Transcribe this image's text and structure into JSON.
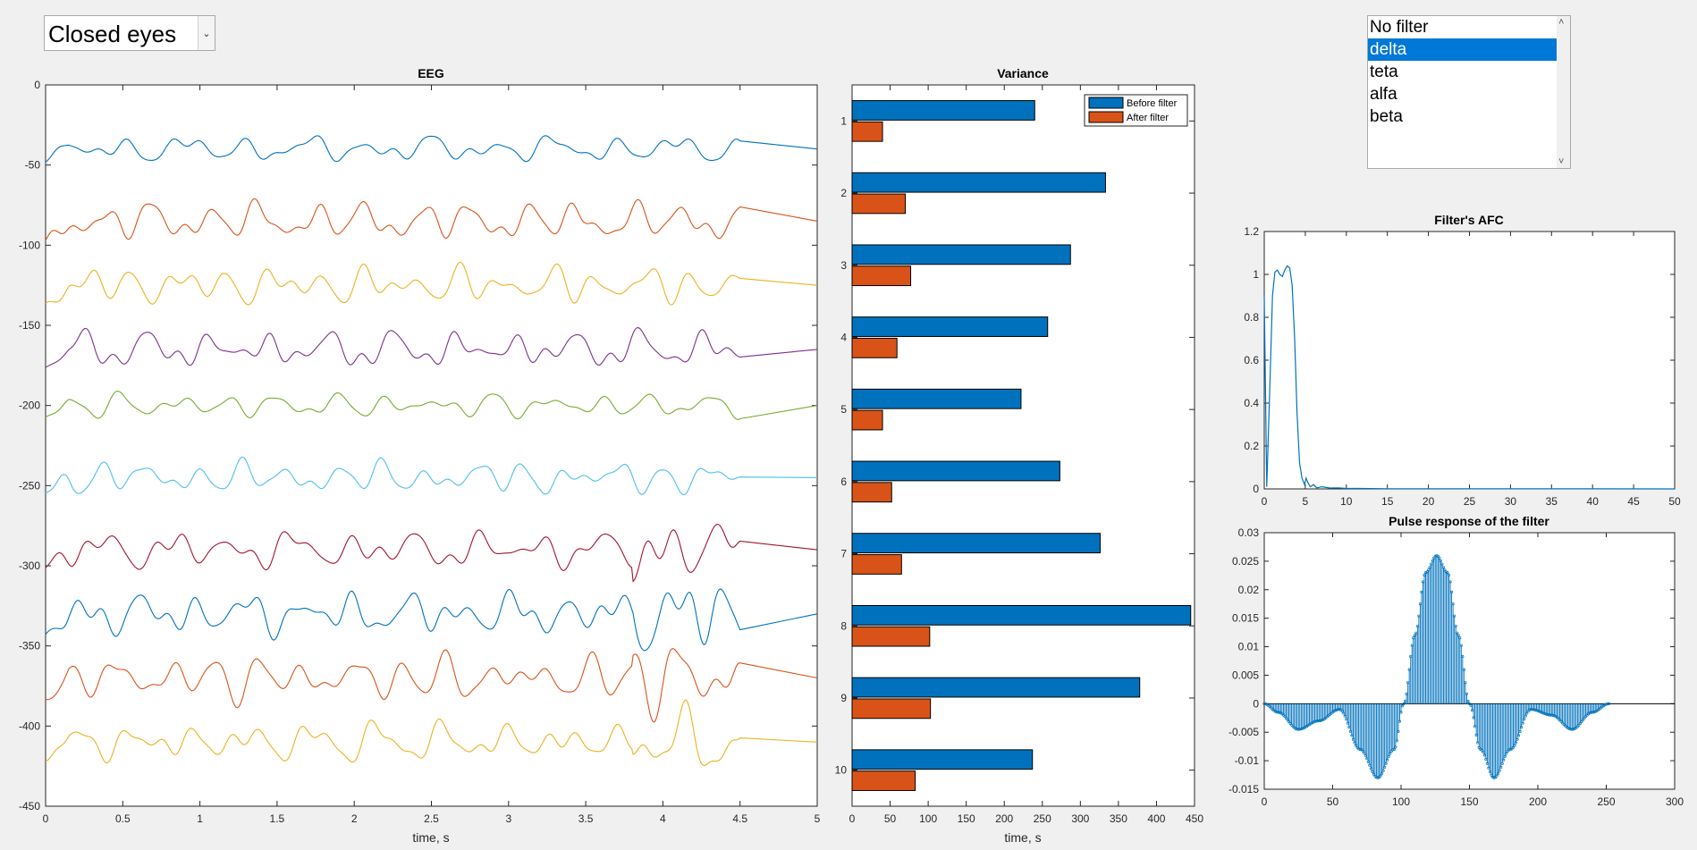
{
  "dropdown": {
    "value": "Closed eyes"
  },
  "listbox": {
    "items": [
      "No filter",
      "delta",
      "teta",
      "alfa",
      "beta"
    ],
    "selected_index": 1
  },
  "colors": {
    "series": [
      "#0072bd",
      "#d95319",
      "#edb120",
      "#7e2f8e",
      "#77ac30",
      "#4dbeee",
      "#a2142f"
    ],
    "before": "#0072bd",
    "after": "#d95319",
    "selection": "#0078d7"
  },
  "chart_data": [
    {
      "type": "line",
      "title": "EEG",
      "xlabel": "time, s",
      "ylabel": "",
      "xlim": [
        0,
        5
      ],
      "ylim": [
        -450,
        0
      ],
      "xticks": [
        "0",
        "0.5",
        "1",
        "1.5",
        "2",
        "2.5",
        "3",
        "3.5",
        "4",
        "4.5",
        "5"
      ],
      "yticks": [
        "0",
        "-50",
        "-100",
        "-150",
        "-200",
        "-250",
        "-300",
        "-350",
        "-400",
        "-450"
      ],
      "channel_offsets": [
        -40,
        -85,
        -125,
        -165,
        -200,
        -245,
        -290,
        -330,
        -370,
        -410
      ],
      "channel_amplitudes": [
        10,
        15,
        14,
        14,
        9,
        12,
        14,
        16,
        17,
        15
      ]
    },
    {
      "type": "bar",
      "orientation": "horizontal",
      "title": "Variance",
      "xlabel": "time, s",
      "xlim": [
        0,
        450
      ],
      "xticks": [
        "0",
        "50",
        "100",
        "150",
        "200",
        "250",
        "300",
        "350",
        "400",
        "450"
      ],
      "categories": [
        "1",
        "2",
        "3",
        "4",
        "5",
        "6",
        "7",
        "8",
        "9",
        "10"
      ],
      "series": [
        {
          "name": "Before filter",
          "values": [
            240,
            333,
            287,
            257,
            222,
            273,
            326,
            445,
            378,
            237
          ]
        },
        {
          "name": "After filter",
          "values": [
            40,
            70,
            77,
            59,
            40,
            52,
            65,
            102,
            103,
            83
          ]
        }
      ],
      "legend": "top-right"
    },
    {
      "type": "line",
      "title": "Filter's AFC",
      "xlabel": "",
      "xlim": [
        0,
        50
      ],
      "ylim": [
        0,
        1.2
      ],
      "xticks": [
        "0",
        "5",
        "10",
        "15",
        "20",
        "25",
        "30",
        "35",
        "40",
        "45",
        "50"
      ],
      "yticks": [
        "0",
        "0.2",
        "0.4",
        "0.6",
        "0.8",
        "1",
        "1.2"
      ],
      "x": [
        0,
        0.3,
        0.7,
        1.0,
        1.3,
        1.6,
        1.9,
        2.2,
        2.5,
        2.8,
        3.1,
        3.4,
        3.7,
        4.0,
        4.3,
        4.6,
        4.9,
        5.1,
        5.3,
        5.6,
        6.0,
        6.4,
        7,
        8,
        9,
        10,
        12,
        15,
        20,
        30,
        40,
        50
      ],
      "y": [
        0.9,
        0.01,
        0.5,
        0.9,
        1.01,
        1.02,
        1.0,
        0.99,
        1.02,
        1.04,
        1.03,
        0.95,
        0.7,
        0.35,
        0.12,
        0.05,
        0.02,
        0.05,
        0.03,
        0.01,
        0.02,
        0.005,
        0.01,
        0.004,
        0.005,
        0.002,
        0.002,
        0.001,
        0.0008,
        0.0005,
        0.0003,
        0.0002
      ]
    },
    {
      "type": "stem",
      "title": "Pulse response of the filter",
      "xlabel": "",
      "xlim": [
        0,
        300
      ],
      "ylim": [
        -0.015,
        0.03
      ],
      "xticks": [
        "0",
        "50",
        "100",
        "150",
        "200",
        "250",
        "300"
      ],
      "yticks": [
        "0.03",
        "0.025",
        "0.02",
        "0.015",
        "0.01",
        "0.005",
        "0",
        "-0.005",
        "-0.01",
        "-0.015"
      ],
      "n_samples": 253,
      "envelope": {
        "x": [
          0,
          10,
          25,
          40,
          55,
          70,
          83,
          95,
          102,
          110,
          118,
          126,
          134,
          142,
          150,
          158,
          168,
          180,
          195,
          210,
          225,
          240,
          252
        ],
        "y": [
          0,
          -0.0015,
          -0.0045,
          -0.003,
          -0.001,
          -0.008,
          -0.013,
          -0.008,
          0,
          0.012,
          0.023,
          0.026,
          0.023,
          0.012,
          0,
          -0.008,
          -0.013,
          -0.008,
          -0.001,
          -0.002,
          -0.0045,
          -0.0015,
          0
        ]
      }
    }
  ]
}
